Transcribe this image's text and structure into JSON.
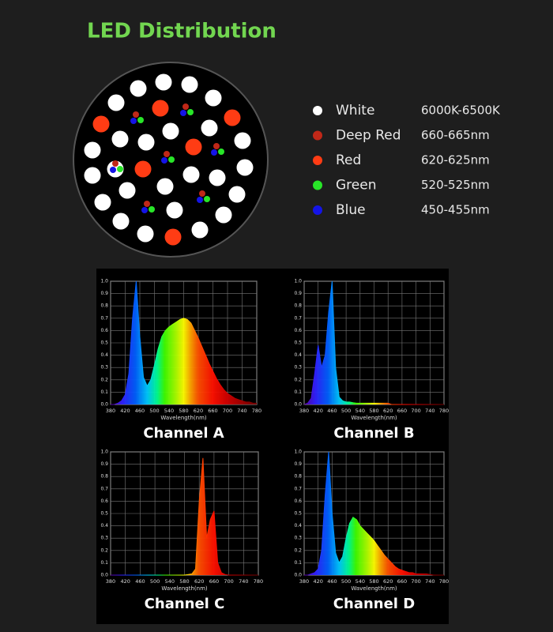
{
  "title": "LED Distribution",
  "legend": [
    {
      "label": "White",
      "range": "6000K-6500K",
      "color": "#ffffff"
    },
    {
      "label": "Deep Red",
      "range": "660-665nm",
      "color": "#c02818"
    },
    {
      "label": "Red",
      "range": "620-625nm",
      "color": "#ff3c14"
    },
    {
      "label": "Green",
      "range": "520-525nm",
      "color": "#28e628"
    },
    {
      "label": "Blue",
      "range": "450-455nm",
      "color": "#1414e6"
    }
  ],
  "spectra": {
    "x_label": "Wavelength(nm)",
    "xlim": [
      380,
      780
    ],
    "ylim": [
      0,
      1
    ],
    "xticks": [
      380,
      420,
      460,
      500,
      540,
      580,
      620,
      660,
      700,
      740,
      780
    ],
    "yticks": [
      {
        "value": 0,
        "label": "0.0"
      },
      0.1,
      0.2,
      0.3,
      0.4,
      0.5,
      0.6,
      0.7,
      0.8,
      0.9,
      {
        "value": 1,
        "label": "1.0"
      }
    ],
    "x": [
      380,
      390,
      400,
      410,
      420,
      430,
      440,
      450,
      460,
      470,
      480,
      490,
      500,
      510,
      520,
      530,
      540,
      550,
      560,
      570,
      580,
      590,
      600,
      610,
      620,
      630,
      640,
      650,
      660,
      670,
      680,
      690,
      700,
      710,
      720,
      730,
      740,
      750,
      760,
      770,
      780
    ],
    "channels": [
      {
        "title": "Channel A",
        "values": [
          0,
          0,
          0.01,
          0.03,
          0.08,
          0.25,
          0.7,
          1.0,
          0.55,
          0.22,
          0.15,
          0.2,
          0.32,
          0.45,
          0.55,
          0.6,
          0.63,
          0.65,
          0.67,
          0.69,
          0.7,
          0.69,
          0.66,
          0.6,
          0.54,
          0.47,
          0.4,
          0.33,
          0.27,
          0.21,
          0.16,
          0.12,
          0.09,
          0.07,
          0.05,
          0.04,
          0.03,
          0.02,
          0.02,
          0.01,
          0.01
        ]
      },
      {
        "title": "Channel B",
        "values": [
          0,
          0.01,
          0.05,
          0.25,
          0.48,
          0.3,
          0.4,
          0.75,
          1.0,
          0.3,
          0.06,
          0.03,
          0.02,
          0.02,
          0.015,
          0.01,
          0.01,
          0.01,
          0.01,
          0.01,
          0.01,
          0.01,
          0.01,
          0.01,
          0.01,
          0,
          0,
          0,
          0,
          0,
          0,
          0,
          0,
          0,
          0,
          0,
          0,
          0,
          0,
          0,
          0
        ]
      },
      {
        "title": "Channel C",
        "values": [
          0,
          0,
          0,
          0,
          0,
          0,
          0,
          0,
          0,
          0,
          0,
          0,
          0,
          0,
          0,
          0,
          0,
          0,
          0,
          0,
          0,
          0.005,
          0.01,
          0.05,
          0.6,
          0.95,
          0.3,
          0.45,
          0.52,
          0.1,
          0.02,
          0.005,
          0,
          0,
          0,
          0,
          0,
          0,
          0,
          0,
          0
        ]
      },
      {
        "title": "Channel D",
        "values": [
          0,
          0,
          0.01,
          0.02,
          0.05,
          0.2,
          0.65,
          1.0,
          0.5,
          0.18,
          0.1,
          0.15,
          0.3,
          0.42,
          0.47,
          0.45,
          0.4,
          0.37,
          0.34,
          0.31,
          0.28,
          0.24,
          0.2,
          0.16,
          0.13,
          0.1,
          0.07,
          0.05,
          0.04,
          0.03,
          0.02,
          0.02,
          0.01,
          0.01,
          0.01,
          0.01,
          0.005,
          0,
          0,
          0,
          0
        ]
      }
    ]
  }
}
